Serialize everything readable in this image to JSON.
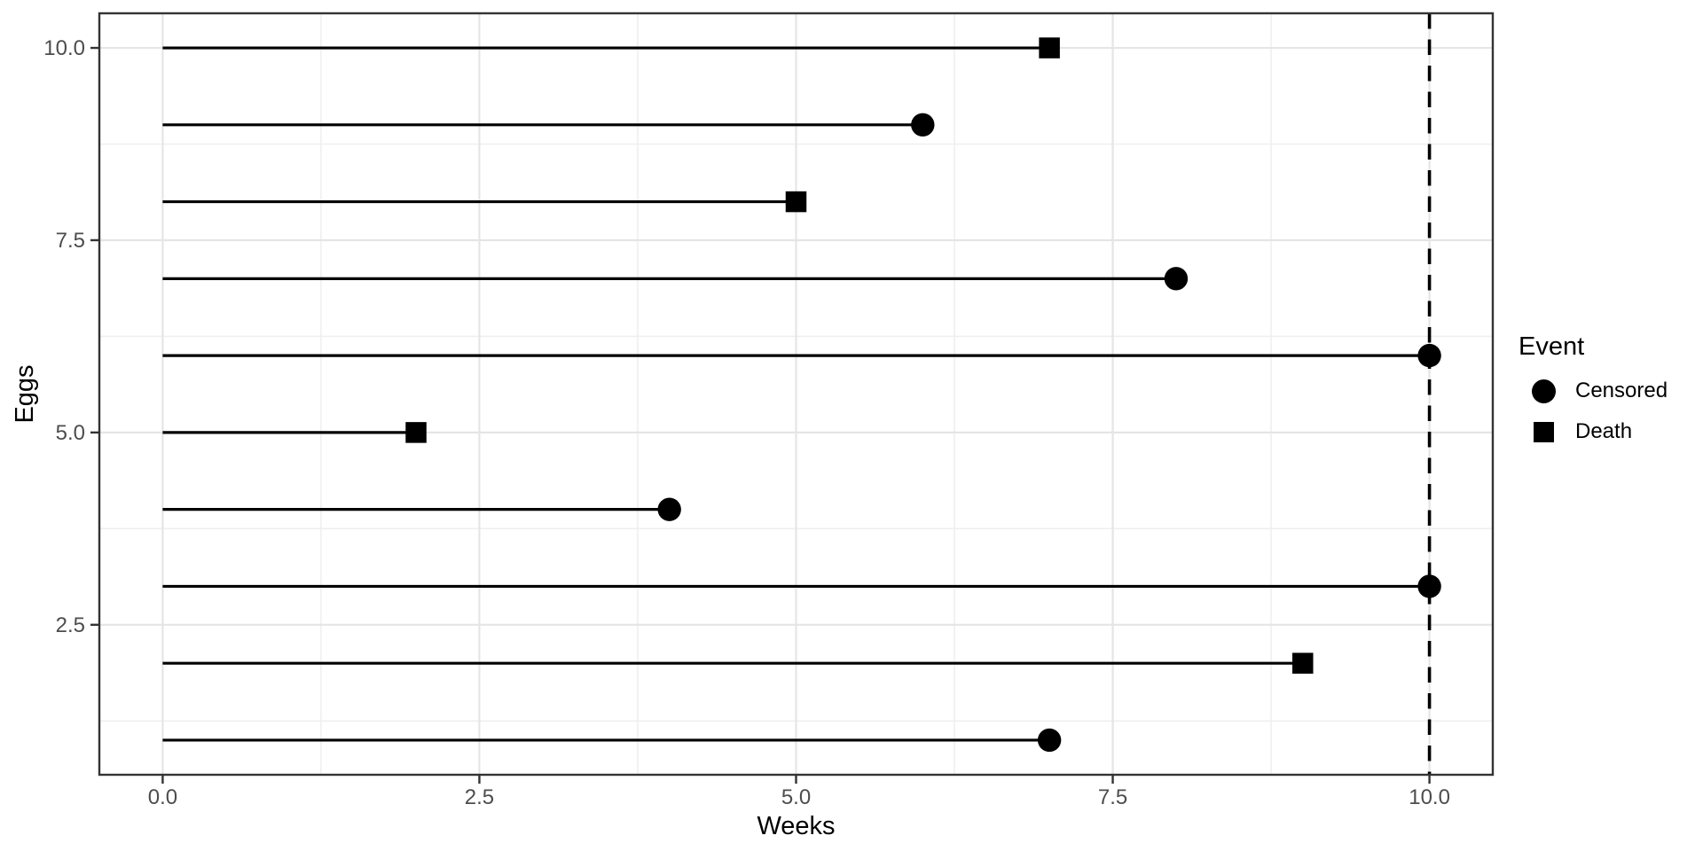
{
  "chart_data": {
    "type": "scatter",
    "marks": "segment+point (horizontal lollipop, survival follow-up)",
    "title": "",
    "xlabel": "Weeks",
    "ylabel": "Eggs",
    "xlim": [
      -0.5,
      10.5
    ],
    "ylim": [
      0.55,
      10.45
    ],
    "x_ticks": [
      {
        "value": 0,
        "label": "0.0"
      },
      {
        "value": 2.5,
        "label": "2.5"
      },
      {
        "value": 5,
        "label": "5.0"
      },
      {
        "value": 7.5,
        "label": "7.5"
      },
      {
        "value": 10,
        "label": "10.0"
      }
    ],
    "y_ticks": [
      {
        "value": 2.5,
        "label": "2.5"
      },
      {
        "value": 5,
        "label": "5.0"
      },
      {
        "value": 7.5,
        "label": "7.5"
      },
      {
        "value": 10,
        "label": "10.0"
      }
    ],
    "x_minor_ticks": [
      1.25,
      3.75,
      6.25,
      8.75
    ],
    "y_minor_ticks": [
      1.25,
      3.75,
      6.25,
      8.75
    ],
    "grid": "major+minor",
    "segment_start_x": 0,
    "reference_line": {
      "x": 10,
      "style": "dashed"
    },
    "series": [
      {
        "eggs": 1,
        "weeks": 7,
        "event": "Censored"
      },
      {
        "eggs": 2,
        "weeks": 9,
        "event": "Death"
      },
      {
        "eggs": 3,
        "weeks": 10,
        "event": "Censored"
      },
      {
        "eggs": 4,
        "weeks": 4,
        "event": "Censored"
      },
      {
        "eggs": 5,
        "weeks": 2,
        "event": "Death"
      },
      {
        "eggs": 6,
        "weeks": 10,
        "event": "Censored"
      },
      {
        "eggs": 7,
        "weeks": 8,
        "event": "Censored"
      },
      {
        "eggs": 8,
        "weeks": 5,
        "event": "Death"
      },
      {
        "eggs": 9,
        "weeks": 6,
        "event": "Censored"
      },
      {
        "eggs": 10,
        "weeks": 7,
        "event": "Death"
      }
    ],
    "legend": {
      "title": "Event",
      "position": "right",
      "entries": [
        {
          "label": "Censored",
          "marker": "circle"
        },
        {
          "label": "Death",
          "marker": "square"
        }
      ]
    },
    "colors": {
      "marker": "#000000",
      "segment": "#000000",
      "reference_line": "#000000",
      "grid_major": "#e5e5e5",
      "grid_minor": "#efefef",
      "panel_border": "#333333",
      "tick_mark": "#333333",
      "tick_label": "#4d4d4d",
      "axis_title": "#000000",
      "background": "#ffffff"
    }
  }
}
